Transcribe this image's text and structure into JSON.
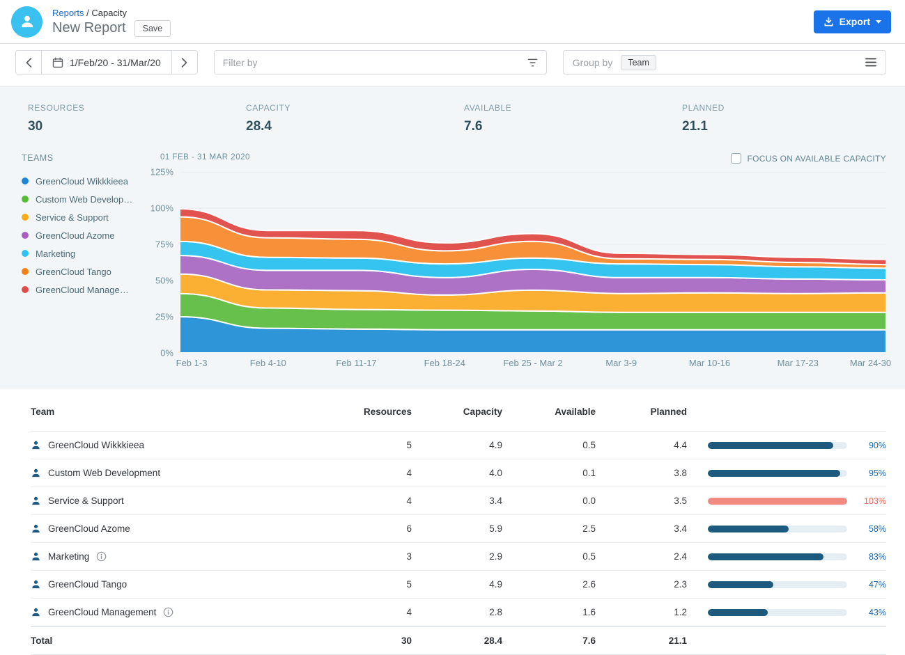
{
  "header": {
    "breadcrumb": {
      "parent": "Reports",
      "separator": " / ",
      "current": "Capacity"
    },
    "title": "New Report",
    "save_button": "Save",
    "export_button": "Export"
  },
  "toolbar": {
    "date_range": "1/Feb/20 - 31/Mar/20",
    "filter_placeholder": "Filter by",
    "group_by_label": "Group by",
    "group_by_value": "Team"
  },
  "summary_stats": [
    {
      "label": "RESOURCES",
      "value": "30"
    },
    {
      "label": "CAPACITY",
      "value": "28.4"
    },
    {
      "label": "AVAILABLE",
      "value": "7.6"
    },
    {
      "label": "PLANNED",
      "value": "21.1"
    }
  ],
  "chart_panel": {
    "legend_title": "TEAMS",
    "period_label": "01 FEB - 31 MAR 2020",
    "focus_checkbox_label": "FOCUS ON AVAILABLE CAPACITY",
    "focus_checkbox_checked": false,
    "legend": [
      {
        "label": "GreenCloud Wikkkieea",
        "color": "#1f87d4"
      },
      {
        "label": "Custom Web Develop…",
        "color": "#54bb34"
      },
      {
        "label": "Service & Support",
        "color": "#fbab18"
      },
      {
        "label": "GreenCloud Azome",
        "color": "#a95fc2"
      },
      {
        "label": "Marketing",
        "color": "#2fc3f4"
      },
      {
        "label": "GreenCloud Tango",
        "color": "#f57f17"
      },
      {
        "label": "GreenCloud Manage…",
        "color": "#e24a47"
      }
    ]
  },
  "chart_data": {
    "type": "area",
    "stacked": true,
    "title": "01 FEB - 31 MAR 2020",
    "unit": "% of capacity",
    "x": [
      "Feb 1-3",
      "Feb 4-10",
      "Feb 11-17",
      "Feb 18-24",
      "Feb 25 - Mar 2",
      "Mar 3-9",
      "Mar 10-16",
      "Mar 17-23",
      "Mar 24-30"
    ],
    "ylim": [
      0,
      125
    ],
    "y_ticks": [
      "0%",
      "25%",
      "50%",
      "75%",
      "100%",
      "125%"
    ],
    "grid": true,
    "legend_position": "left",
    "series": [
      {
        "name": "GreenCloud Wikkkieea",
        "color": "#2e95d8",
        "values": [
          25,
          17,
          16.5,
          16,
          16,
          16,
          16,
          16,
          16
        ]
      },
      {
        "name": "Custom Web Development",
        "color": "#67bf4c",
        "values": [
          16,
          14,
          13.5,
          13.5,
          13,
          12,
          12,
          12,
          12
        ]
      },
      {
        "name": "Service & Support",
        "color": "#fbaf33",
        "values": [
          13.5,
          12.5,
          13,
          10.5,
          14.3,
          13,
          13.5,
          13,
          13.5
        ]
      },
      {
        "name": "GreenCloud Azome",
        "color": "#ad72c5",
        "values": [
          12.8,
          13.5,
          14,
          12,
          14.4,
          11,
          10.5,
          10,
          9
        ]
      },
      {
        "name": "Marketing",
        "color": "#35c4f0",
        "values": [
          9.7,
          9,
          8.5,
          9.5,
          7.8,
          9.5,
          9,
          8.5,
          8
        ]
      },
      {
        "name": "GreenCloud Tango",
        "color": "#f6913a",
        "values": [
          17,
          13.5,
          13,
          9,
          11.5,
          3.5,
          3.5,
          3,
          2.5
        ]
      },
      {
        "name": "GreenCloud Management",
        "color": "#e0534e",
        "values": [
          5.5,
          5,
          6,
          5.5,
          5.4,
          3.8,
          3.5,
          3.5,
          3.5
        ]
      }
    ]
  },
  "table": {
    "columns": [
      "Team",
      "Resources",
      "Capacity",
      "Available",
      "Planned"
    ],
    "rows": [
      {
        "team": "GreenCloud Wikkkieea",
        "info": false,
        "resources": "5",
        "capacity": "4.9",
        "available": "0.5",
        "planned": "4.4",
        "utilization_pct": 90
      },
      {
        "team": "Custom Web Development",
        "info": false,
        "resources": "4",
        "capacity": "4.0",
        "available": "0.1",
        "planned": "3.8",
        "utilization_pct": 95
      },
      {
        "team": "Service & Support",
        "info": false,
        "resources": "4",
        "capacity": "3.4",
        "available": "0.0",
        "planned": "3.5",
        "utilization_pct": 103
      },
      {
        "team": "GreenCloud Azome",
        "info": false,
        "resources": "6",
        "capacity": "5.9",
        "available": "2.5",
        "planned": "3.4",
        "utilization_pct": 58
      },
      {
        "team": "Marketing",
        "info": true,
        "resources": "3",
        "capacity": "2.9",
        "available": "0.5",
        "planned": "2.4",
        "utilization_pct": 83
      },
      {
        "team": "GreenCloud Tango",
        "info": false,
        "resources": "5",
        "capacity": "4.9",
        "available": "2.6",
        "planned": "2.3",
        "utilization_pct": 47
      },
      {
        "team": "GreenCloud Management",
        "info": true,
        "resources": "4",
        "capacity": "2.8",
        "available": "1.6",
        "planned": "1.2",
        "utilization_pct": 43
      }
    ],
    "total": {
      "label": "Total",
      "resources": "30",
      "capacity": "28.4",
      "available": "7.6",
      "planned": "21.1"
    }
  },
  "colors": {
    "accent_blue": "#1a73e8",
    "avatar_blue": "#3bc1ef",
    "bar_fill": "#1d5a80",
    "bar_over_fill": "#f18a80",
    "pct_text": "#1a6ab0",
    "pct_over_text": "#ee6157",
    "section_bg": "#f3f6f8"
  }
}
